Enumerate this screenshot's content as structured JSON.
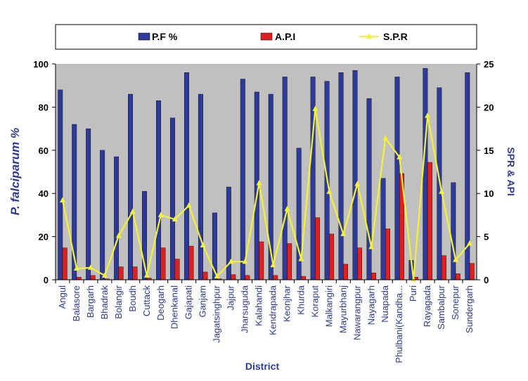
{
  "chart_data": {
    "type": "bar",
    "xlabel": "District",
    "ylabel_left": "P. falciparum %",
    "ylabel_right": "SPR & API",
    "ylim_left": [
      0,
      100
    ],
    "ylim_right": [
      0,
      25
    ],
    "yticks_left": [
      "0",
      "20",
      "40",
      "60",
      "80",
      "100"
    ],
    "yticks_right": [
      "0",
      "5",
      "10",
      "15",
      "20",
      "25"
    ],
    "grid": false,
    "legend_position": "top",
    "categories": [
      "Angul",
      "Balasore",
      "Bargarh",
      "Bhadrak",
      "Bolangir",
      "Boudh",
      "Cuttack",
      "Deogarh",
      "Dhenkanal",
      "Gajapati",
      "Ganjam",
      "Jagatsinghpur",
      "Jajpur",
      "Jharsuguda",
      "Kalahandi",
      "Kendrapada",
      "Keonjhar",
      "Khurda",
      "Koraput",
      "Malkangiri",
      "Mayurbhanj",
      "Nawarangpur",
      "Nayagarh",
      "Nuapada",
      "Phulbani(Kandha...",
      "Puri",
      "Rayagada",
      "Sambalpur",
      "Sonepur",
      "Sundergarh"
    ],
    "series": [
      {
        "name": "P.F %",
        "axis": "left",
        "kind": "bar",
        "color": "#2e3a9a",
        "values": [
          88,
          72,
          70,
          60,
          57,
          86,
          41,
          83,
          75,
          96,
          86,
          31,
          43,
          93,
          87,
          86,
          94,
          61,
          94,
          92,
          96,
          97,
          84,
          47,
          94,
          9,
          98,
          89,
          45,
          96
        ]
      },
      {
        "name": "A.P.I",
        "axis": "right",
        "kind": "bar",
        "color": "#e02020",
        "values": [
          3.7,
          0.3,
          0.5,
          0.1,
          1.5,
          1.5,
          0.2,
          3.7,
          2.4,
          3.9,
          0.9,
          0.1,
          0.6,
          0.5,
          4.4,
          0.5,
          4.2,
          0.4,
          7.2,
          5.3,
          1.8,
          3.7,
          0.8,
          5.9,
          12.3,
          0.3,
          13.6,
          2.8,
          0.7,
          1.9
        ]
      },
      {
        "name": "S.P.R",
        "axis": "right",
        "kind": "line",
        "color": "#f2f235",
        "values": [
          9.2,
          1.3,
          1.4,
          0.5,
          5.1,
          7.9,
          0.5,
          7.5,
          7.0,
          8.6,
          4.0,
          0.4,
          2.1,
          2.1,
          11.2,
          1.7,
          8.2,
          2.4,
          19.8,
          10.2,
          5.3,
          11.1,
          3.8,
          16.4,
          14.2,
          0.0,
          19.0,
          10.2,
          2.3,
          4.2
        ]
      }
    ]
  }
}
